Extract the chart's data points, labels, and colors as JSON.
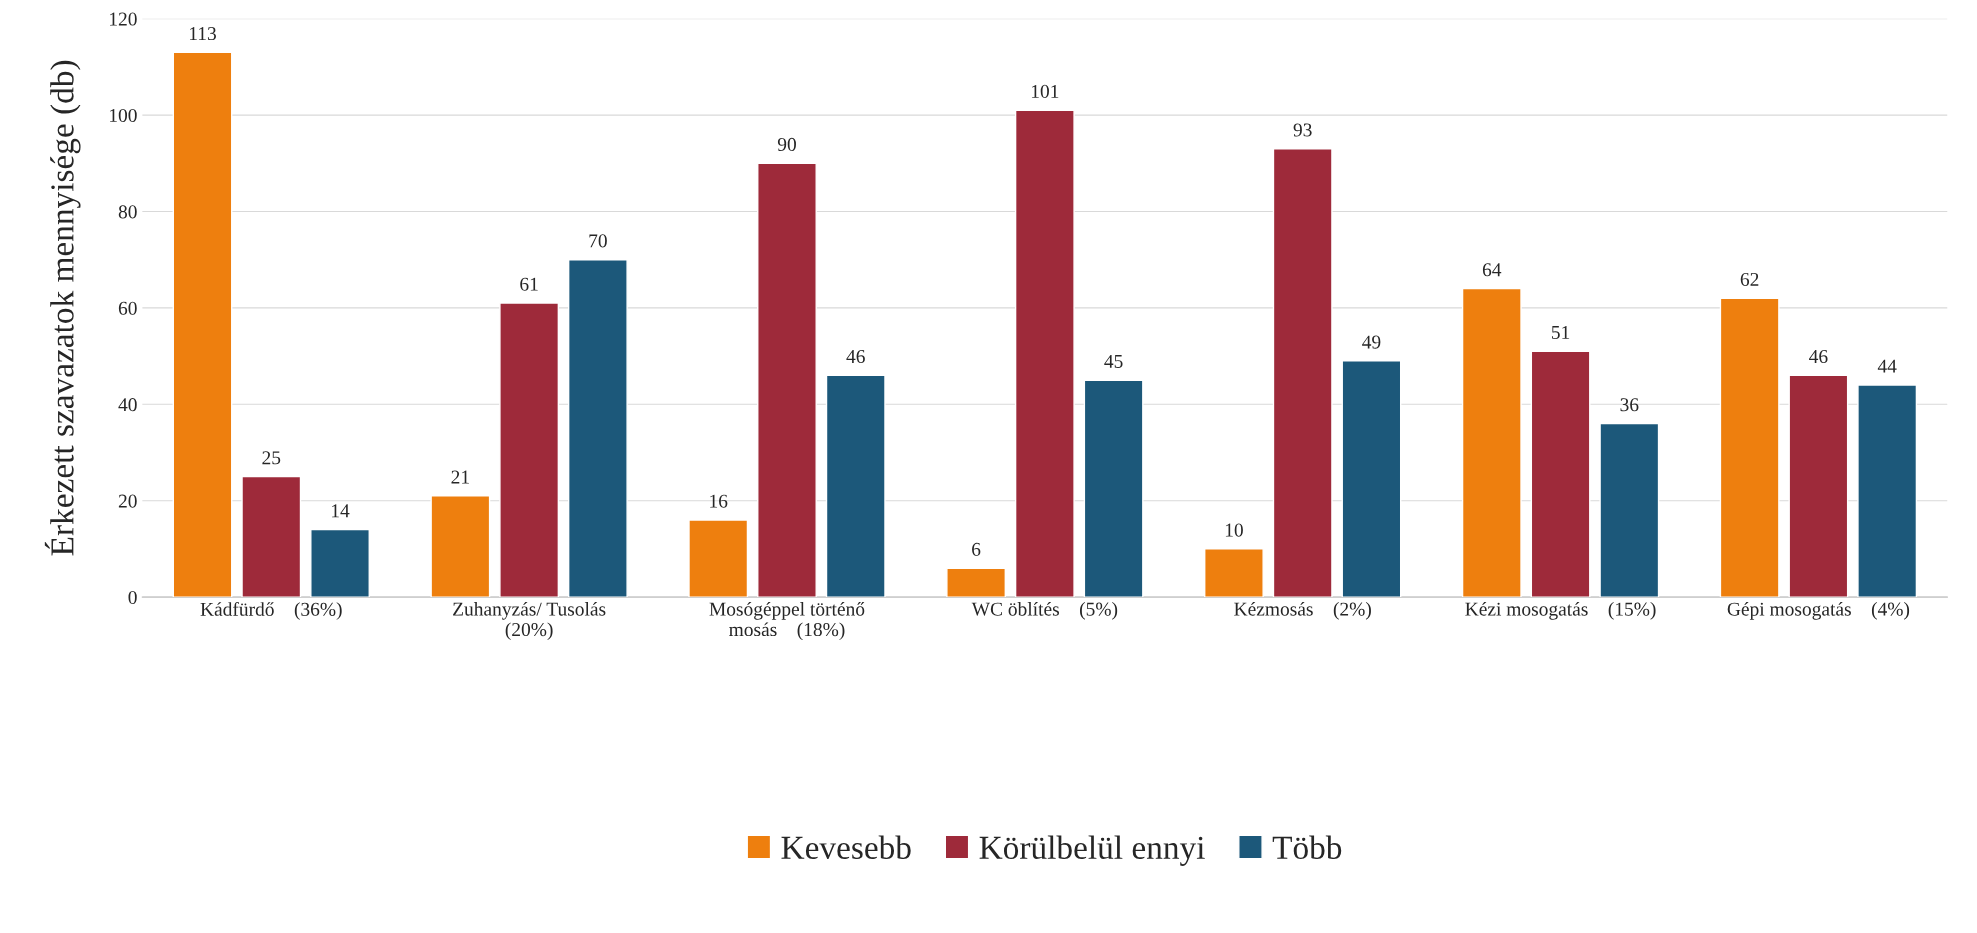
{
  "chart_data": {
    "type": "bar",
    "ylabel": "Érkezett szavazatok mennyisége (db)",
    "categories": [
      "Kádfürdő    (36%)",
      "Zuhanyzás/ Tusolás\n(20%)",
      "Mosógéppel történő\nmosás    (18%)",
      "WC öblítés    (5%)",
      "Kézmosás    (2%)",
      "Kézi mosogatás    (15%)",
      "Gépi mosogatás    (4%)"
    ],
    "series": [
      {
        "name": "Kevesebb",
        "color": "#ee7f0e",
        "values": [
          113,
          21,
          16,
          6,
          10,
          64,
          62
        ]
      },
      {
        "name": "Körülbelül ennyi",
        "color": "#9e2a3a",
        "values": [
          25,
          61,
          90,
          101,
          93,
          51,
          46
        ]
      },
      {
        "name": "Több",
        "color": "#1c587a",
        "values": [
          14,
          70,
          46,
          45,
          49,
          36,
          44
        ]
      }
    ],
    "ylim": [
      0,
      120
    ],
    "yticks": [
      0,
      20,
      40,
      60,
      80,
      100,
      120
    ],
    "grid": "y",
    "legend": "bottom",
    "data_labels": true
  }
}
